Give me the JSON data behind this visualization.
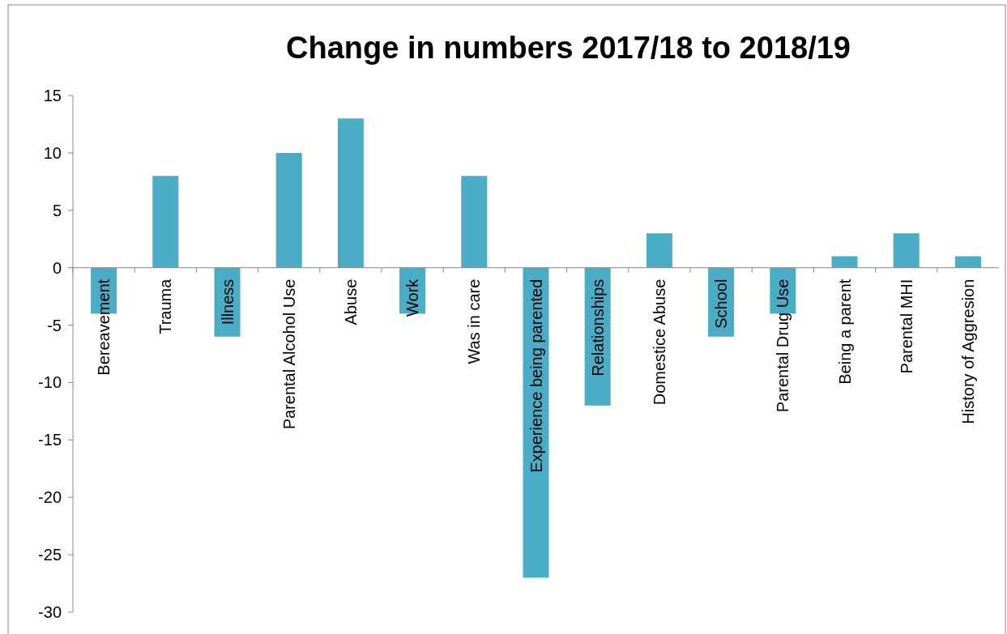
{
  "chart_data": {
    "type": "bar",
    "title": "Change in numbers 2017/18 to 2018/19",
    "categories": [
      "Bereavement",
      "Trauma",
      "Illness",
      "Parental Alcohol Use",
      "Abuse",
      "Work",
      "Was in care",
      "Experience being parented",
      "Relationships",
      "Domestice Abuse",
      "School",
      "Parental Drug Use",
      "Being a parent",
      "Parental MHI",
      "History of Aggresion"
    ],
    "values": [
      -4,
      8,
      -6,
      10,
      13,
      -4,
      8,
      -27,
      -12,
      3,
      -6,
      -4,
      1,
      3,
      1
    ],
    "color": "#4bacc6",
    "ylim": [
      -30,
      15
    ],
    "yticks": [
      -30,
      -25,
      -20,
      -15,
      -10,
      -5,
      0,
      5,
      10,
      15
    ],
    "grid": false
  }
}
